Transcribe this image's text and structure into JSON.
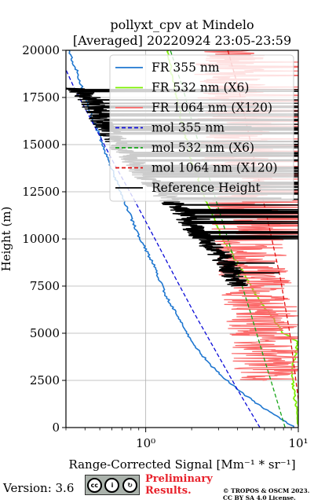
{
  "chart_data": {
    "type": "line",
    "title": "pollyxt_cpv at Mindelo",
    "subtitle": "[Averaged] 20220924 23:05-23:59",
    "xlabel": "Range-Corrected Signal [Mm⁻¹ * sr⁻¹]",
    "ylabel": "Height (m)",
    "xscale": "log",
    "xlim": [
      0.3,
      10
    ],
    "ylim": [
      0,
      20000
    ],
    "xticks": [
      1,
      10
    ],
    "xtick_labels": [
      "10⁰",
      "10¹"
    ],
    "yticks": [
      0,
      2500,
      5000,
      7500,
      10000,
      12500,
      15000,
      17500,
      20000
    ],
    "ytick_labels": [
      "0",
      "2500",
      "5000",
      "7500",
      "10000",
      "12500",
      "15000",
      "17500",
      "20000"
    ],
    "grid": true,
    "legend": "top-right",
    "series": [
      {
        "name": "FR 355 nm",
        "color": "#1f77d0",
        "style": "solid",
        "width": 1.6,
        "noise": 0.02,
        "x": [
          9.5,
          6.0,
          4.0,
          2.9,
          2.25,
          1.85,
          1.6,
          1.35,
          1.15,
          0.92,
          0.72,
          0.58,
          0.47,
          0.4,
          0.35,
          0.31
        ],
        "y": [
          0,
          1000,
          2000,
          3000,
          4000,
          5000,
          6000,
          7000,
          8500,
          10000,
          12000,
          14000,
          16000,
          17500,
          19000,
          20000
        ]
      },
      {
        "name": "FR 532 nm (X6)",
        "color": "#7cf000",
        "style": "solid",
        "width": 1.8,
        "noise": 0.02,
        "x": [
          10,
          9.0,
          10,
          8.0,
          6.5,
          5.3,
          4.5,
          3.8,
          3.2,
          2.8,
          2.5,
          2.25,
          2.0,
          1.75,
          1.5,
          1.4
        ],
        "y": [
          0,
          3000,
          4500,
          5000,
          6000,
          7000,
          8000,
          9000,
          10000,
          11000,
          12000,
          13000,
          14000,
          16000,
          18500,
          20000
        ]
      },
      {
        "name": "FR 1064 nm (X120)",
        "color": "#fb6a6a",
        "style": "noisy",
        "width": 1.2,
        "noise": 0.55,
        "x": [
          6.5,
          6.0,
          5.5,
          5.0,
          4.6,
          4.2,
          4.0,
          3.8,
          3.6,
          3.5
        ],
        "y": [
          2500,
          5000,
          7000,
          9000,
          10500,
          12500,
          14500,
          16500,
          18500,
          20000
        ]
      },
      {
        "name": "mol 355 nm",
        "color": "#0a0ad8",
        "style": "dashed",
        "width": 1.3,
        "noise": 0,
        "x": [
          5.6,
          4.0,
          2.9,
          2.1,
          1.55,
          1.15,
          0.85,
          0.62,
          0.46,
          0.34,
          0.28
        ],
        "y": [
          0,
          2000,
          4000,
          6000,
          8000,
          10000,
          12000,
          14000,
          16000,
          18000,
          19500
        ]
      },
      {
        "name": "mol 532 nm (X6)",
        "color": "#17a617",
        "style": "dashed",
        "width": 1.3,
        "noise": 0,
        "x": [
          8.2,
          6.9,
          5.8,
          4.9,
          4.1,
          3.45,
          2.9,
          2.45,
          2.05,
          1.75,
          1.45
        ],
        "y": [
          0,
          2000,
          4000,
          6000,
          8000,
          10000,
          12000,
          14000,
          16000,
          18000,
          20000
        ]
      },
      {
        "name": "mol 1064 nm (X120)",
        "color": "#e01010",
        "style": "dashed",
        "width": 1.3,
        "noise": 0,
        "x": [
          10,
          8.8,
          7.6,
          6.5,
          5.55,
          4.75,
          4.05,
          3.45
        ],
        "y": [
          1500,
          5000,
          8000,
          10500,
          13000,
          15500,
          18000,
          20000
        ]
      },
      {
        "name": "Reference Height",
        "color": "#000000",
        "style": "noisy",
        "width": 1.5,
        "noise": 0.18,
        "x": [
          4.0,
          3.8,
          3.5,
          3.2,
          2.8,
          2.4,
          2.1,
          1.7,
          1.25,
          0.95,
          0.75,
          0.6,
          0.5,
          0.42,
          0.35
        ],
        "y": [
          7500,
          8000,
          8500,
          9000,
          9500,
          10000,
          10500,
          11500,
          12500,
          13500,
          14500,
          15500,
          16500,
          17500,
          18000
        ]
      }
    ]
  },
  "footer": {
    "version": "Version: 3.6",
    "cc_icons": [
      "cc-icon",
      "by-icon",
      "sa-icon"
    ],
    "cc_badge_text": "BY  SA",
    "preliminary_line1": "Preliminary",
    "preliminary_line2": "Results.",
    "copyright_line1": "© TROPOS & OSCM 2023.",
    "copyright_line2": "CC BY SA 4.0 License."
  }
}
